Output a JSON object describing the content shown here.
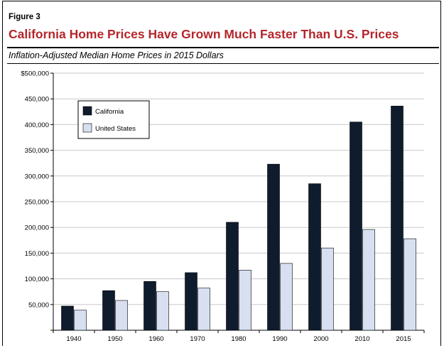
{
  "figure": {
    "label": "Figure 3",
    "title": "California Home Prices Have Grown Much Faster Than U.S. Prices",
    "subtitle": "Inflation-Adjusted Median Home Prices in 2015 Dollars"
  },
  "colors": {
    "title": "#b4262b",
    "california": "#0f1c2e",
    "united_states": "#d7dff1"
  },
  "chart_data": {
    "type": "bar",
    "categories": [
      "1940",
      "1950",
      "1960",
      "1970",
      "1980",
      "1990",
      "2000",
      "2010",
      "2015"
    ],
    "series": [
      {
        "name": "California",
        "values": [
          47000,
          77000,
          95000,
          112000,
          210000,
          323000,
          285000,
          405000,
          436000
        ]
      },
      {
        "name": "United States",
        "values": [
          39000,
          58000,
          75000,
          82000,
          117000,
          130000,
          160000,
          196000,
          178000
        ]
      }
    ],
    "ylim": [
      0,
      500000
    ],
    "yticks": [
      0,
      50000,
      100000,
      150000,
      200000,
      250000,
      300000,
      350000,
      400000,
      450000,
      500000
    ],
    "ytick_labels": [
      "",
      "50,000",
      "100,000",
      "150,000",
      "200,000",
      "250,000",
      "300,000",
      "350,000",
      "400,000",
      "450,000",
      "$500,000"
    ],
    "grid": true,
    "legend": "top-left",
    "xlabel": "",
    "ylabel": ""
  }
}
